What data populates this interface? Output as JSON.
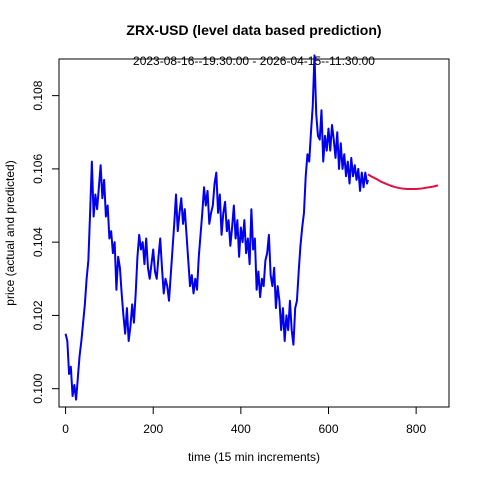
{
  "chart_data": {
    "type": "line",
    "title": "ZRX-USD (level data based prediction)",
    "subtitle": "2023-08-16--19:30:00  -  2026-04-15--11:30:00",
    "xlabel": "time (15 min increments)",
    "ylabel": "price (actual and predicted)",
    "xlim": [
      -15,
      875
    ],
    "ylim": [
      0.0995,
      0.109
    ],
    "xticks": [
      0,
      200,
      400,
      600,
      800
    ],
    "yticks": [
      0.1,
      0.102,
      0.104,
      0.106,
      0.108
    ],
    "ytick_labels": [
      "0.100",
      "0.102",
      "0.104",
      "0.106",
      "0.108"
    ],
    "grid": false,
    "series": [
      {
        "color": "#0000ee",
        "points": [
          [
            0,
            0.1015
          ],
          [
            4,
            0.1013
          ],
          [
            8,
            0.1004
          ],
          [
            12,
            0.1006
          ],
          [
            16,
            0.0998
          ],
          [
            20,
            0.1001
          ],
          [
            24,
            0.0997
          ],
          [
            28,
            0.1003
          ],
          [
            32,
            0.1009
          ],
          [
            36,
            0.1013
          ],
          [
            40,
            0.1018
          ],
          [
            44,
            0.1023
          ],
          [
            48,
            0.103
          ],
          [
            52,
            0.1035
          ],
          [
            56,
            0.1048
          ],
          [
            60,
            0.1062
          ],
          [
            64,
            0.1047
          ],
          [
            68,
            0.1053
          ],
          [
            72,
            0.1049
          ],
          [
            76,
            0.1055
          ],
          [
            80,
            0.1061
          ],
          [
            84,
            0.1052
          ],
          [
            88,
            0.1057
          ],
          [
            92,
            0.1047
          ],
          [
            96,
            0.105
          ],
          [
            100,
            0.1041
          ],
          [
            104,
            0.1043
          ],
          [
            108,
            0.1037
          ],
          [
            112,
            0.104
          ],
          [
            116,
            0.1027
          ],
          [
            120,
            0.1036
          ],
          [
            124,
            0.1033
          ],
          [
            128,
            0.1026
          ],
          [
            132,
            0.102
          ],
          [
            136,
            0.1015
          ],
          [
            140,
            0.1022
          ],
          [
            144,
            0.1013
          ],
          [
            148,
            0.1017
          ],
          [
            152,
            0.1023
          ],
          [
            156,
            0.1018
          ],
          [
            160,
            0.1026
          ],
          [
            164,
            0.1036
          ],
          [
            168,
            0.1042
          ],
          [
            172,
            0.1038
          ],
          [
            176,
            0.104
          ],
          [
            180,
            0.1034
          ],
          [
            184,
            0.1041
          ],
          [
            188,
            0.1033
          ],
          [
            192,
            0.103
          ],
          [
            196,
            0.1034
          ],
          [
            200,
            0.1038
          ],
          [
            204,
            0.1032
          ],
          [
            208,
            0.103
          ],
          [
            212,
            0.1036
          ],
          [
            216,
            0.1041
          ],
          [
            220,
            0.1033
          ],
          [
            224,
            0.1026
          ],
          [
            228,
            0.103
          ],
          [
            232,
            0.1028
          ],
          [
            236,
            0.1024
          ],
          [
            240,
            0.1031
          ],
          [
            244,
            0.1038
          ],
          [
            248,
            0.1045
          ],
          [
            252,
            0.1053
          ],
          [
            256,
            0.1043
          ],
          [
            260,
            0.1048
          ],
          [
            264,
            0.1052
          ],
          [
            268,
            0.1045
          ],
          [
            272,
            0.1049
          ],
          [
            276,
            0.1042
          ],
          [
            280,
            0.1035
          ],
          [
            284,
            0.1028
          ],
          [
            288,
            0.1031
          ],
          [
            292,
            0.1026
          ],
          [
            296,
            0.103
          ],
          [
            300,
            0.1027
          ],
          [
            304,
            0.1036
          ],
          [
            308,
            0.1042
          ],
          [
            312,
            0.1048
          ],
          [
            316,
            0.1055
          ],
          [
            320,
            0.105
          ],
          [
            324,
            0.1054
          ],
          [
            328,
            0.1045
          ],
          [
            332,
            0.1048
          ],
          [
            336,
            0.105
          ],
          [
            340,
            0.1056
          ],
          [
            344,
            0.1059
          ],
          [
            348,
            0.1048
          ],
          [
            352,
            0.1053
          ],
          [
            356,
            0.1042
          ],
          [
            360,
            0.1048
          ],
          [
            364,
            0.1051
          ],
          [
            368,
            0.1043
          ],
          [
            372,
            0.1046
          ],
          [
            376,
            0.1039
          ],
          [
            380,
            0.1044
          ],
          [
            384,
            0.105
          ],
          [
            388,
            0.1041
          ],
          [
            392,
            0.1046
          ],
          [
            396,
            0.1036
          ],
          [
            400,
            0.1044
          ],
          [
            404,
            0.104
          ],
          [
            408,
            0.1046
          ],
          [
            412,
            0.1037
          ],
          [
            416,
            0.1041
          ],
          [
            420,
            0.1034
          ],
          [
            424,
            0.1049
          ],
          [
            428,
            0.1038
          ],
          [
            432,
            0.1041
          ],
          [
            436,
            0.1027
          ],
          [
            440,
            0.1032
          ],
          [
            444,
            0.1025
          ],
          [
            448,
            0.103
          ],
          [
            452,
            0.1028
          ],
          [
            456,
            0.1035
          ],
          [
            460,
            0.1037
          ],
          [
            464,
            0.1042
          ],
          [
            468,
            0.1031
          ],
          [
            472,
            0.1028
          ],
          [
            476,
            0.1033
          ],
          [
            480,
            0.1022
          ],
          [
            484,
            0.1028
          ],
          [
            488,
            0.1024
          ],
          [
            492,
            0.1016
          ],
          [
            496,
            0.1022
          ],
          [
            500,
            0.1013
          ],
          [
            504,
            0.102
          ],
          [
            508,
            0.1016
          ],
          [
            512,
            0.1024
          ],
          [
            516,
            0.1016
          ],
          [
            520,
            0.1012
          ],
          [
            524,
            0.1022
          ],
          [
            528,
            0.1024
          ],
          [
            532,
            0.1032
          ],
          [
            536,
            0.1039
          ],
          [
            540,
            0.1044
          ],
          [
            544,
            0.1048
          ],
          [
            548,
            0.1058
          ],
          [
            552,
            0.1064
          ],
          [
            556,
            0.1062
          ],
          [
            560,
            0.107
          ],
          [
            564,
            0.1077
          ],
          [
            568,
            0.1091
          ],
          [
            572,
            0.1075
          ],
          [
            576,
            0.1069
          ],
          [
            580,
            0.1068
          ],
          [
            584,
            0.1076
          ],
          [
            588,
            0.1062
          ],
          [
            592,
            0.1069
          ],
          [
            596,
            0.1065
          ],
          [
            600,
            0.1071
          ],
          [
            604,
            0.1065
          ],
          [
            608,
            0.1072
          ],
          [
            612,
            0.1068
          ],
          [
            616,
            0.1063
          ],
          [
            620,
            0.107
          ],
          [
            624,
            0.106
          ],
          [
            628,
            0.1067
          ],
          [
            632,
            0.106
          ],
          [
            636,
            0.1064
          ],
          [
            640,
            0.1058
          ],
          [
            644,
            0.1062
          ],
          [
            648,
            0.1056
          ],
          [
            652,
            0.1063
          ],
          [
            656,
            0.1058
          ],
          [
            660,
            0.1061
          ],
          [
            664,
            0.1057
          ],
          [
            668,
            0.106
          ],
          [
            672,
            0.1054
          ],
          [
            676,
            0.1059
          ],
          [
            680,
            0.1055
          ],
          [
            684,
            0.1059
          ],
          [
            688,
            0.1056
          ],
          [
            690,
            0.1057
          ]
        ]
      },
      {
        "color": "#dd1144",
        "points": [
          [
            690,
            0.10585
          ],
          [
            700,
            0.10578
          ],
          [
            710,
            0.10572
          ],
          [
            720,
            0.10565
          ],
          [
            730,
            0.1056
          ],
          [
            740,
            0.10555
          ],
          [
            750,
            0.10551
          ],
          [
            760,
            0.10548
          ],
          [
            770,
            0.10546
          ],
          [
            780,
            0.10545
          ],
          [
            790,
            0.10545
          ],
          [
            800,
            0.10545
          ],
          [
            810,
            0.10546
          ],
          [
            820,
            0.10548
          ],
          [
            830,
            0.1055
          ],
          [
            840,
            0.10552
          ],
          [
            850,
            0.10555
          ]
        ]
      }
    ]
  }
}
